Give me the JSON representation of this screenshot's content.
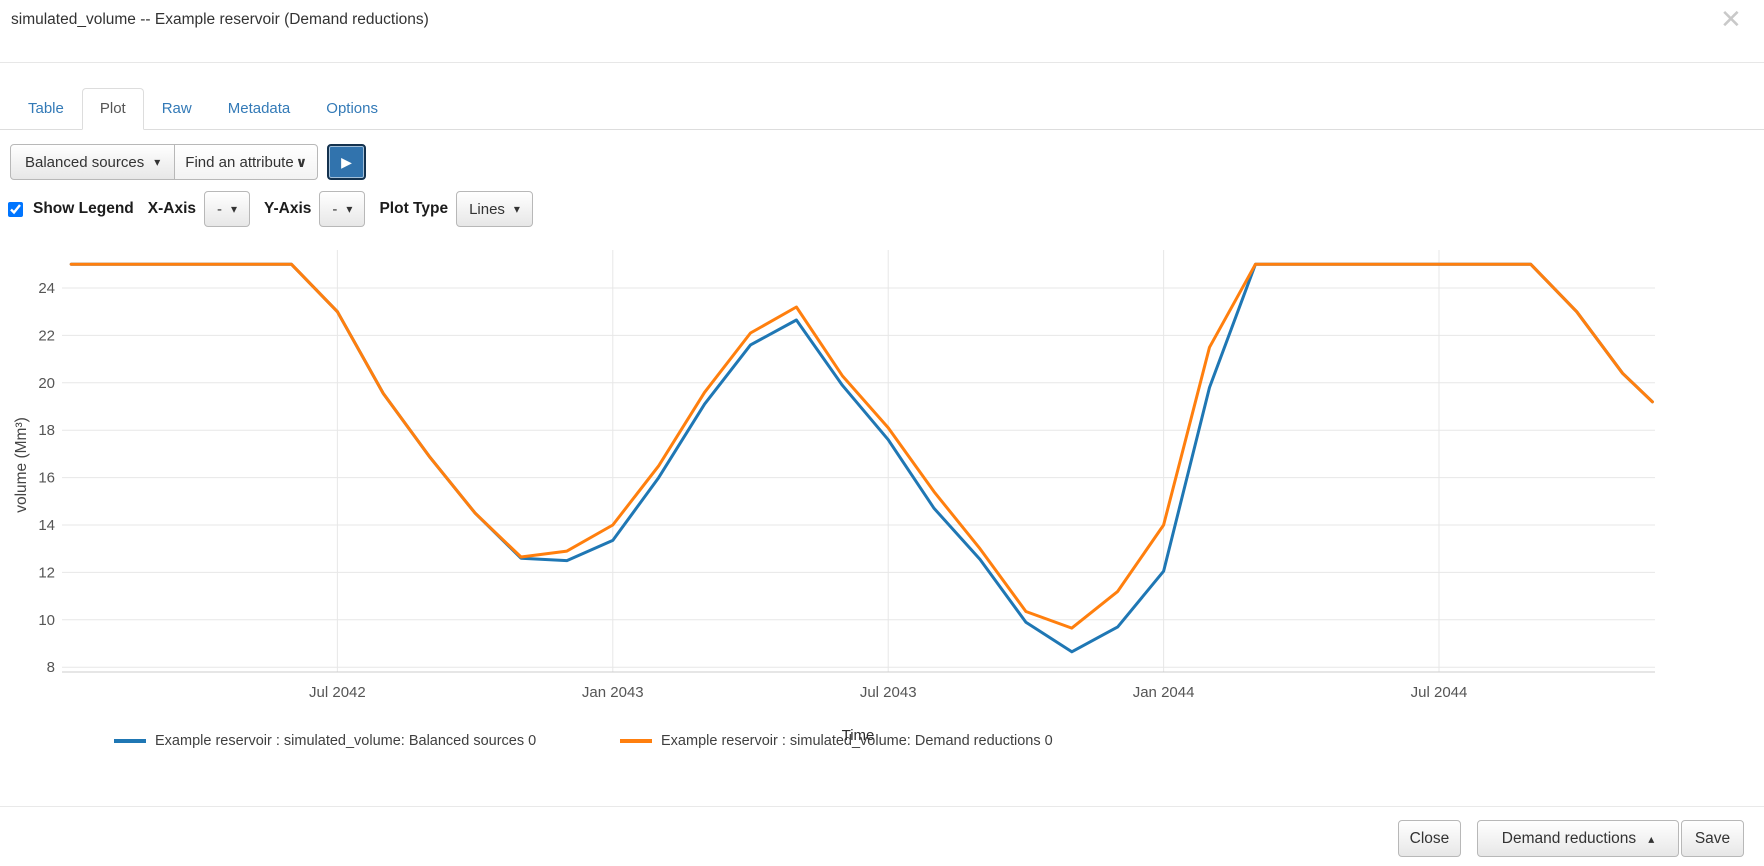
{
  "modal": {
    "title": "simulated_volume -- Example reservoir (Demand reductions)"
  },
  "icons": {
    "close": "✕",
    "caret_down": "▾",
    "caret_up": "▴",
    "chevron_down": "∨",
    "play": "▶"
  },
  "tabs": [
    {
      "label": "Table",
      "active": false
    },
    {
      "label": "Plot",
      "active": true
    },
    {
      "label": "Raw",
      "active": false
    },
    {
      "label": "Metadata",
      "active": false
    },
    {
      "label": "Options",
      "active": false
    }
  ],
  "toolbar": {
    "scenario_dropdown_label": "Balanced sources",
    "attribute_dropdown_label": "Find an attribute"
  },
  "plot_controls": {
    "show_legend_label": "Show Legend",
    "show_legend_checked": true,
    "x_axis_label": "X-Axis",
    "x_axis_value": "-",
    "y_axis_label": "Y-Axis",
    "y_axis_value": "-",
    "plot_type_label": "Plot Type",
    "plot_type_value": "Lines"
  },
  "chart_data": {
    "type": "line",
    "title": "",
    "xlabel": "Time",
    "ylabel": "volume (Mm³)",
    "x_unit": "months since Jan 2042",
    "xlim": [
      0,
      34.7
    ],
    "ylim": [
      7.4,
      25.4
    ],
    "grid": true,
    "legend_position": "bottom",
    "x_ticks": [
      {
        "m": 6,
        "label": "Jul 2042"
      },
      {
        "m": 12,
        "label": "Jan 2043"
      },
      {
        "m": 18,
        "label": "Jul 2043"
      },
      {
        "m": 24,
        "label": "Jan 2044"
      },
      {
        "m": 30,
        "label": "Jul 2044"
      }
    ],
    "y_ticks": [
      8,
      10,
      12,
      14,
      16,
      18,
      20,
      22,
      24
    ],
    "series": [
      {
        "name": "Example reservoir : simulated_volume: Balanced sources 0",
        "color": "#1f77b4",
        "points": [
          [
            0.2,
            25
          ],
          [
            1,
            25
          ],
          [
            2,
            25
          ],
          [
            3,
            25
          ],
          [
            4,
            25
          ],
          [
            5,
            25
          ],
          [
            6,
            23.0
          ],
          [
            7,
            19.55
          ],
          [
            8,
            16.9
          ],
          [
            9,
            14.5
          ],
          [
            10,
            12.6
          ],
          [
            11,
            12.5
          ],
          [
            12,
            13.35
          ],
          [
            13,
            16.0
          ],
          [
            14,
            19.1
          ],
          [
            15,
            21.6
          ],
          [
            16,
            22.65
          ],
          [
            17,
            19.9
          ],
          [
            18,
            17.6
          ],
          [
            19,
            14.7
          ],
          [
            20,
            12.55
          ],
          [
            21,
            9.9
          ],
          [
            22,
            8.65
          ],
          [
            23,
            9.7
          ],
          [
            24,
            12.05
          ],
          [
            25,
            19.8
          ],
          [
            26,
            25
          ],
          [
            27,
            25
          ],
          [
            28,
            25
          ],
          [
            29,
            25
          ],
          [
            30,
            25
          ],
          [
            31,
            25
          ],
          [
            32,
            25
          ],
          [
            33,
            23.0
          ],
          [
            34,
            20.4
          ],
          [
            34.65,
            19.2
          ]
        ]
      },
      {
        "name": "Example reservoir : simulated_volume: Demand reductions 0",
        "color": "#ff7f0e",
        "points": [
          [
            0.2,
            25
          ],
          [
            1,
            25
          ],
          [
            2,
            25
          ],
          [
            3,
            25
          ],
          [
            4,
            25
          ],
          [
            5,
            25
          ],
          [
            6,
            23.0
          ],
          [
            7,
            19.55
          ],
          [
            8,
            16.9
          ],
          [
            9,
            14.5
          ],
          [
            10,
            12.65
          ],
          [
            11,
            12.9
          ],
          [
            12,
            14.0
          ],
          [
            13,
            16.5
          ],
          [
            14,
            19.6
          ],
          [
            15,
            22.1
          ],
          [
            16,
            23.2
          ],
          [
            17,
            20.3
          ],
          [
            18,
            18.1
          ],
          [
            19,
            15.4
          ],
          [
            20,
            13.0
          ],
          [
            21,
            10.35
          ],
          [
            22,
            9.65
          ],
          [
            23,
            11.2
          ],
          [
            24,
            14.0
          ],
          [
            25,
            21.5
          ],
          [
            26,
            25
          ],
          [
            27,
            25
          ],
          [
            28,
            25
          ],
          [
            29,
            25
          ],
          [
            30,
            25
          ],
          [
            31,
            25
          ],
          [
            32,
            25
          ],
          [
            33,
            23.0
          ],
          [
            34,
            20.4
          ],
          [
            34.65,
            19.2
          ]
        ]
      }
    ]
  },
  "footer": {
    "close_label": "Close",
    "scenario_label": "Demand reductions",
    "save_label": "Save"
  }
}
